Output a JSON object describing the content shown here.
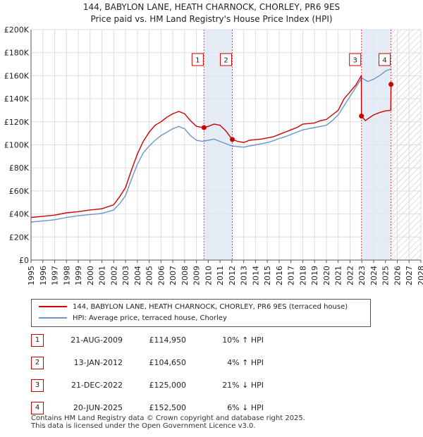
{
  "title_line1": "144, BABYLON LANE, HEATH CHARNOCK, CHORLEY, PR6 9ES",
  "title_line2": "Price paid vs. HM Land Registry's House Price Index (HPI)",
  "colors": {
    "property": "#cc0000",
    "hpi": "#6a96c8",
    "shade": "#dce6f2",
    "grid": "#dddddd"
  },
  "legend": {
    "property": "144, BABYLON LANE, HEATH CHARNOCK, CHORLEY, PR6 9ES (terraced house)",
    "hpi": "HPI: Average price, terraced house, Chorley"
  },
  "sales": [
    {
      "num": "1",
      "date": "21-AUG-2009",
      "price": "£114,950",
      "hpi": "10% ↑ HPI"
    },
    {
      "num": "2",
      "date": "13-JAN-2012",
      "price": "£104,650",
      "hpi": "4% ↑ HPI"
    },
    {
      "num": "3",
      "date": "21-DEC-2022",
      "price": "£125,000",
      "hpi": "21% ↓ HPI"
    },
    {
      "num": "4",
      "date": "20-JUN-2025",
      "price": "£152,500",
      "hpi": "6% ↓ HPI"
    }
  ],
  "footer_line1": "Contains HM Land Registry data © Crown copyright and database right 2025.",
  "footer_line2": "This data is licensed under the Open Government Licence v3.0.",
  "chart_data": {
    "type": "line",
    "title": "Price paid vs. HM Land Registry's House Price Index (HPI)",
    "xlim": [
      1995,
      2028
    ],
    "ylim": [
      0,
      200000
    ],
    "y_ticks": [
      {
        "value": 0,
        "label": "£0"
      },
      {
        "value": 20000,
        "label": "£20K"
      },
      {
        "value": 40000,
        "label": "£40K"
      },
      {
        "value": 60000,
        "label": "£60K"
      },
      {
        "value": 80000,
        "label": "£80K"
      },
      {
        "value": 100000,
        "label": "£100K"
      },
      {
        "value": 120000,
        "label": "£120K"
      },
      {
        "value": 140000,
        "label": "£140K"
      },
      {
        "value": 160000,
        "label": "£160K"
      },
      {
        "value": 180000,
        "label": "£180K"
      },
      {
        "value": 200000,
        "label": "£200K"
      }
    ],
    "x_ticks": [
      "1995",
      "1996",
      "1997",
      "1998",
      "1999",
      "2000",
      "2001",
      "2002",
      "2003",
      "2004",
      "2005",
      "2006",
      "2007",
      "2008",
      "2009",
      "2010",
      "2011",
      "2012",
      "2013",
      "2014",
      "2015",
      "2016",
      "2017",
      "2018",
      "2019",
      "2020",
      "2021",
      "2022",
      "2023",
      "2024",
      "2025",
      "2026",
      "2027",
      "2028"
    ],
    "shaded_ranges": [
      [
        2009.64,
        2012.04
      ],
      [
        2022.97,
        2025.47
      ]
    ],
    "future_hatch_from": 2025.5,
    "markers": [
      {
        "label": "1",
        "x": 2009.64,
        "y": 114950
      },
      {
        "label": "2",
        "x": 2012.04,
        "y": 104650
      },
      {
        "label": "3",
        "x": 2022.97,
        "y": 125000
      },
      {
        "label": "4",
        "x": 2025.47,
        "y": 152500
      }
    ],
    "series": [
      {
        "name": "144, BABYLON LANE, HEATH CHARNOCK, CHORLEY, PR6 9ES (terraced house)",
        "x": [
          1995,
          1996,
          1997,
          1998,
          1999,
          2000,
          2001,
          2002,
          2002.5,
          2003,
          2003.5,
          2004,
          2004.5,
          2005,
          2005.5,
          2006,
          2006.5,
          2007,
          2007.5,
          2008,
          2008.5,
          2009,
          2009.64,
          2010,
          2010.5,
          2011,
          2011.5,
          2012.04,
          2012.5,
          2013,
          2013.5,
          2014,
          2014.5,
          2015,
          2015.5,
          2016,
          2016.5,
          2017,
          2017.5,
          2018,
          2018.5,
          2019,
          2019.5,
          2020,
          2020.5,
          2021,
          2021.5,
          2022,
          2022.5,
          2022.96,
          2022.97,
          2023.3,
          2023.7,
          2024,
          2024.5,
          2025,
          2025.45,
          2025.47,
          2025.6
        ],
        "values": [
          37000,
          38000,
          39000,
          41000,
          42000,
          43500,
          44500,
          48000,
          55000,
          63000,
          78000,
          92000,
          103000,
          111000,
          117000,
          120000,
          124000,
          127000,
          129000,
          127000,
          121000,
          116000,
          114950,
          116000,
          118000,
          117000,
          112000,
          104650,
          103000,
          102000,
          104000,
          104500,
          105000,
          106000,
          107000,
          109000,
          111000,
          113000,
          115000,
          118000,
          118500,
          119000,
          121000,
          122000,
          126000,
          130000,
          140000,
          146000,
          152000,
          160000,
          125000,
          121000,
          124000,
          126000,
          128000,
          129500,
          130000,
          152500,
          153000
        ]
      },
      {
        "name": "HPI: Average price, terraced house, Chorley",
        "x": [
          1995,
          1996,
          1997,
          1998,
          1999,
          2000,
          2001,
          2002,
          2002.5,
          2003,
          2003.5,
          2004,
          2004.5,
          2005,
          2005.5,
          2006,
          2006.5,
          2007,
          2007.5,
          2008,
          2008.5,
          2009,
          2009.5,
          2010,
          2010.5,
          2011,
          2011.5,
          2012,
          2012.5,
          2013,
          2013.5,
          2014,
          2014.5,
          2015,
          2015.5,
          2016,
          2016.5,
          2017,
          2017.5,
          2018,
          2018.5,
          2019,
          2019.5,
          2020,
          2020.5,
          2021,
          2021.5,
          2022,
          2022.5,
          2023,
          2023.5,
          2024,
          2024.5,
          2025,
          2025.5
        ],
        "values": [
          33000,
          34000,
          35000,
          37000,
          38500,
          39500,
          40500,
          43500,
          49000,
          56000,
          70000,
          83000,
          93000,
          99000,
          104000,
          108000,
          111000,
          114000,
          116000,
          114000,
          108000,
          104000,
          103000,
          104000,
          105000,
          103000,
          101000,
          99000,
          98500,
          98000,
          99000,
          100000,
          101000,
          102000,
          103500,
          105500,
          107000,
          109000,
          111000,
          113000,
          114000,
          115000,
          116000,
          117000,
          121000,
          126000,
          134000,
          142000,
          150000,
          158000,
          155000,
          157000,
          160000,
          164000,
          166000
        ]
      }
    ]
  }
}
